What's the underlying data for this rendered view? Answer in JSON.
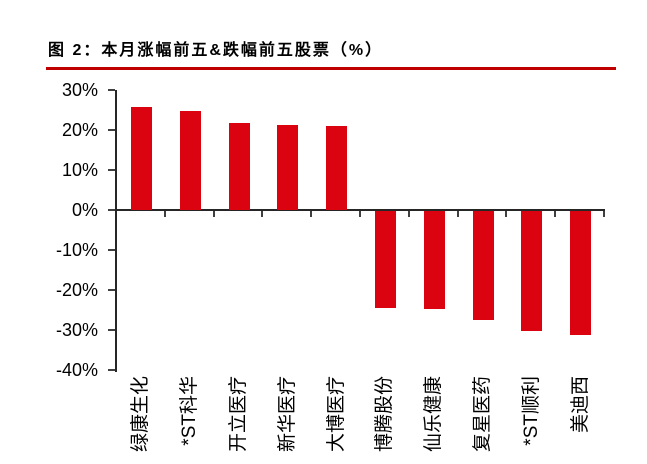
{
  "figure": {
    "title": "图 2：本月涨幅前五&跌幅前五股票（%）",
    "accent_color": "#c00000"
  },
  "chart_data": {
    "type": "bar",
    "title": "图 2：本月涨幅前五&跌幅前五股票（%）",
    "categories": [
      "绿康生化",
      "*ST科华",
      "开立医疗",
      "新华医疗",
      "大博医疗",
      "博腾股份",
      "仙乐健康",
      "复星医药",
      "*ST顺利",
      "美迪西"
    ],
    "values": [
      25.8,
      24.8,
      21.8,
      21.3,
      20.9,
      -24.2,
      -24.5,
      -27.3,
      -29.9,
      -31.0
    ],
    "xlabel": "",
    "ylabel": "",
    "ylim": [
      -40,
      30
    ],
    "ytick_step": 10,
    "yticks": [
      "30%",
      "20%",
      "10%",
      "0%",
      "-10%",
      "-20%",
      "-30%",
      "-40%"
    ],
    "bar_color": "#da030f",
    "axis_color": "#262626",
    "grid": false,
    "legend": null,
    "xlabel_rotation_deg": -90
  }
}
